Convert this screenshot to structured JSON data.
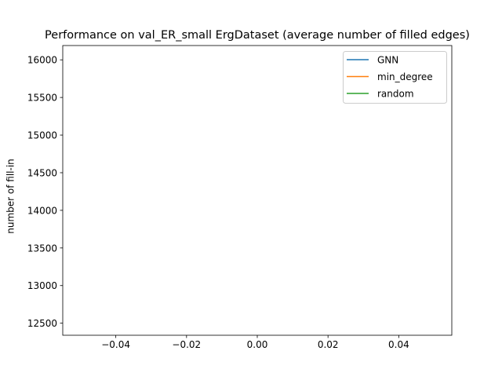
{
  "chart_data": {
    "type": "line",
    "title": "Performance on val_ER_small ErgDataset (average number of filled edges)",
    "xlabel": "",
    "ylabel": "number of fill-in",
    "xlim": [
      -0.055,
      0.055
    ],
    "ylim": [
      12340,
      16190
    ],
    "xticks": [
      -0.04,
      -0.02,
      0.0,
      0.02,
      0.04
    ],
    "xtick_labels": [
      "−0.04",
      "−0.02",
      "0.00",
      "0.02",
      "0.04"
    ],
    "yticks": [
      12500,
      13000,
      13500,
      14000,
      14500,
      15000,
      15500,
      16000
    ],
    "ytick_labels": [
      "12500",
      "13000",
      "13500",
      "14000",
      "14500",
      "15000",
      "15500",
      "16000"
    ],
    "grid": false,
    "legend_position": "upper right",
    "series": [
      {
        "name": "GNN",
        "color": "#1f77b4",
        "x": [],
        "y": []
      },
      {
        "name": "min_degree",
        "color": "#ff7f0e",
        "x": [],
        "y": []
      },
      {
        "name": "random",
        "color": "#2ca02c",
        "x": [],
        "y": []
      }
    ]
  }
}
